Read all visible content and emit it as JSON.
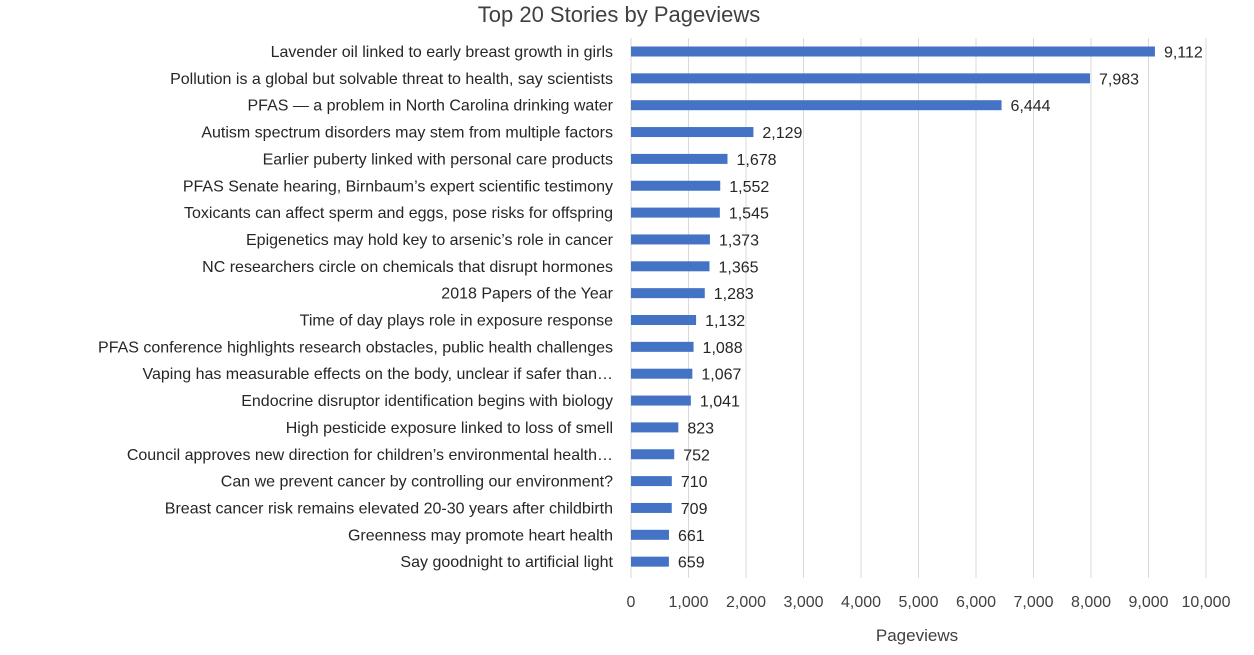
{
  "chart_data": {
    "type": "bar",
    "orientation": "horizontal",
    "title": "Top 20 Stories by Pageviews",
    "xlabel": "Pageviews",
    "ylabel": "",
    "xlim": [
      0,
      10000
    ],
    "x_ticks": [
      "0",
      "1,000",
      "2,000",
      "3,000",
      "4,000",
      "5,000",
      "6,000",
      "7,000",
      "8,000",
      "9,000",
      "10,000"
    ],
    "grid": true,
    "legend": "none",
    "bar_color": "#4472c4",
    "categories": [
      "Lavender oil linked to early breast growth in girls",
      "Pollution is a global but solvable threat to health, say scientists",
      "PFAS — a problem in North Carolina drinking water",
      "Autism spectrum disorders may stem from multiple factors",
      "Earlier puberty linked with personal care products",
      "PFAS Senate hearing, Birnbaum’s expert scientific testimony",
      "Toxicants can affect sperm and eggs, pose risks for offspring",
      "Epigenetics may hold key to arsenic’s role in cancer",
      "NC researchers circle on chemicals that disrupt hormones",
      "2018 Papers of the Year",
      "Time of day plays role in exposure response",
      "PFAS conference highlights research obstacles, public health challenges",
      "Vaping has measurable effects on the body, unclear if safer than…",
      "Endocrine disruptor identification begins with biology",
      "High pesticide exposure linked to loss of smell",
      "Council approves new direction for children’s environmental health…",
      "Can we prevent cancer by controlling our environment?",
      "Breast cancer risk remains elevated 20-30 years after childbirth",
      "Greenness may promote heart health",
      "Say goodnight to artificial light"
    ],
    "values": [
      9112,
      7983,
      6444,
      2129,
      1678,
      1552,
      1545,
      1373,
      1365,
      1283,
      1132,
      1088,
      1067,
      1041,
      823,
      752,
      710,
      709,
      661,
      659
    ],
    "data_labels": [
      "9,112",
      "7,983",
      "6,444",
      "2,129",
      "1,678",
      "1,552",
      "1,545",
      "1,373",
      "1,365",
      "1,283",
      "1,132",
      "1,088",
      "1,067",
      "1,041",
      "823",
      "752",
      "710",
      "709",
      "661",
      "659"
    ]
  }
}
